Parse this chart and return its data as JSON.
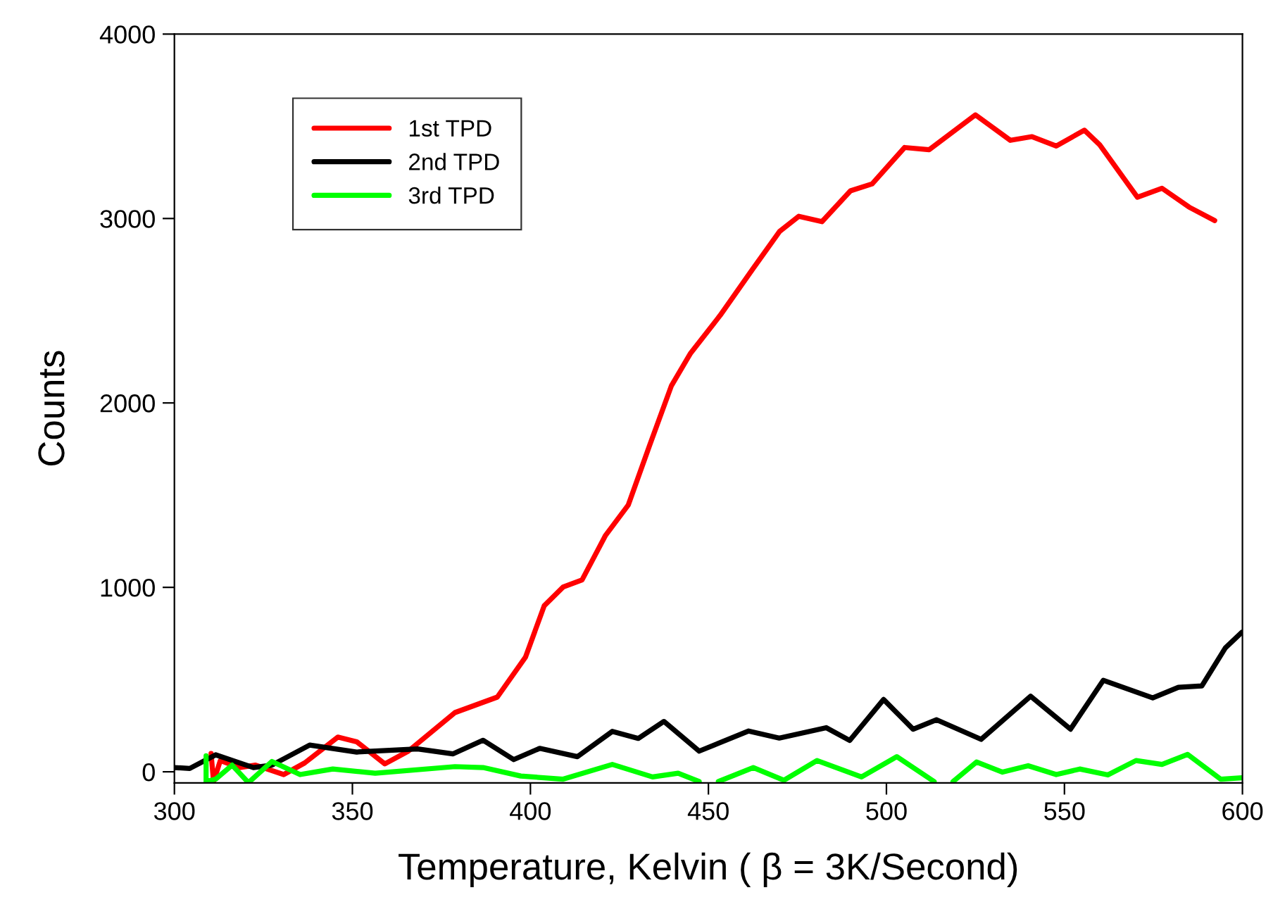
{
  "chart_data": {
    "type": "line",
    "xlabel": "Temperature, Kelvin ( β = 3K/Second)",
    "ylabel": "Counts",
    "xlim": [
      300,
      600
    ],
    "xticks": [
      300,
      350,
      400,
      450,
      500,
      550,
      600
    ],
    "ylim": [
      -60,
      4000
    ],
    "yticks": [
      0,
      1000,
      2000,
      3000,
      4000
    ],
    "grid": false,
    "legend": "top left",
    "marker": "none",
    "line_style": "solid",
    "series": [
      {
        "name": "1st TPD",
        "color": "#ff0000",
        "x": [
          310.3,
          311,
          312.9,
          318.2,
          322.8,
          330.7,
          336.6,
          345.9,
          351.2,
          359.1,
          365.7,
          378.8,
          390.7,
          398.6,
          403.9,
          409.2,
          414.5,
          421.1,
          427.5,
          433.5,
          439.6,
          444.9,
          453.3,
          462.4,
          470.0,
          475.4,
          481.9,
          489.9,
          496.0,
          505.1,
          512.0,
          525.0,
          534.8,
          540.9,
          547.7,
          555.6,
          559.9,
          570.5,
          577.4,
          585.0,
          592.2
        ],
        "values": [
          99,
          -53,
          61,
          23,
          36,
          -15,
          48,
          188,
          163,
          43,
          112,
          321,
          405,
          621,
          901,
          1002,
          1040,
          1282,
          1447,
          1771,
          2093,
          2267,
          2475,
          2725,
          2930,
          3012,
          2983,
          3150,
          3188,
          3385,
          3373,
          3562,
          3424,
          3444,
          3393,
          3479,
          3400,
          3115,
          3164,
          3062,
          2989
        ]
      },
      {
        "name": "2nd TPD",
        "color": "#000000",
        "x": [
          300,
          304.3,
          311.6,
          322.2,
          327.4,
          338.0,
          351.2,
          368.3,
          378.2,
          386.7,
          395.3,
          402.6,
          413.2,
          423.0,
          430.3,
          437.5,
          447.4,
          461.3,
          469.9,
          483.1,
          489.7,
          499.2,
          507.5,
          514.1,
          526.6,
          540.5,
          551.7,
          560.9,
          574.8,
          582.0,
          588.6,
          595.2,
          599.8
        ],
        "values": [
          23,
          18,
          92,
          23,
          36,
          145,
          107,
          124,
          97,
          171,
          66,
          127,
          82,
          219,
          181,
          273,
          112,
          221,
          183,
          239,
          170,
          392,
          231,
          282,
          176,
          410,
          231,
          496,
          401,
          458,
          466,
          672,
          756
        ]
      },
      {
        "name": "3rd TPD",
        "color": "#00ff00",
        "x": [
          308.9,
          308.9,
          311.6,
          316.2,
          320.8,
          327.4,
          335.3,
          344.5,
          356.4,
          378.8,
          386.7,
          397.3,
          409.2,
          423.0,
          434.3,
          441.5,
          447.4,
          450.0,
          452.8,
          462.6,
          471.2,
          480.5,
          493.0,
          502.9,
          513.4,
          516.0,
          518.7,
          525.3,
          532.6,
          539.8,
          547.7,
          554.3,
          562.2,
          570.1,
          577.4,
          584.6,
          593.9,
          599.8
        ],
        "values": [
          87,
          -53,
          -40,
          36,
          -59,
          56,
          -15,
          15,
          -8,
          28,
          23,
          -23,
          -40,
          40,
          -28,
          -8,
          -53,
          null,
          -53,
          23,
          -46,
          61,
          -28,
          82,
          -53,
          null,
          -53,
          53,
          -2,
          33,
          -15,
          15,
          -17,
          61,
          40,
          94,
          -40,
          -33
        ]
      }
    ]
  }
}
